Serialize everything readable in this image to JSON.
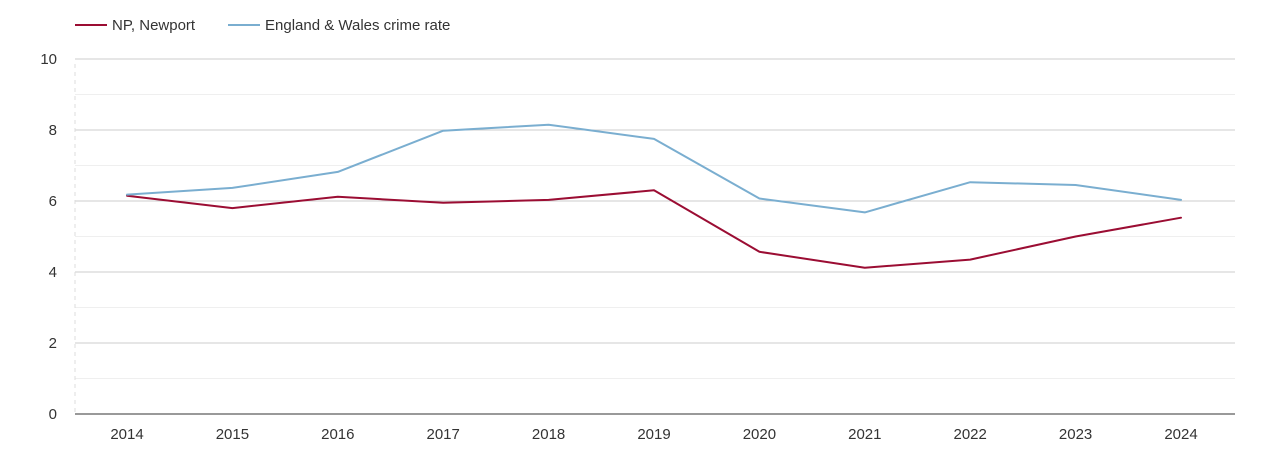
{
  "chart_data": {
    "type": "line",
    "title": "",
    "xlabel": "",
    "ylabel": "",
    "x": [
      "2014",
      "2015",
      "2016",
      "2017",
      "2018",
      "2019",
      "2020",
      "2021",
      "2022",
      "2023",
      "2024"
    ],
    "ylim": [
      0,
      10
    ],
    "yticks": [
      0,
      2,
      4,
      6,
      8,
      10
    ],
    "grid": true,
    "legend_position": "top-left",
    "series": [
      {
        "name": "NP, Newport",
        "color": "#9b0d33",
        "values": [
          6.15,
          5.8,
          6.12,
          5.95,
          6.03,
          6.3,
          4.57,
          4.12,
          4.35,
          5.0,
          5.53
        ]
      },
      {
        "name": "England & Wales crime rate",
        "color": "#7aaed0",
        "values": [
          6.18,
          6.37,
          6.82,
          7.98,
          8.15,
          7.75,
          6.07,
          5.68,
          6.53,
          6.45,
          6.03
        ]
      }
    ]
  }
}
